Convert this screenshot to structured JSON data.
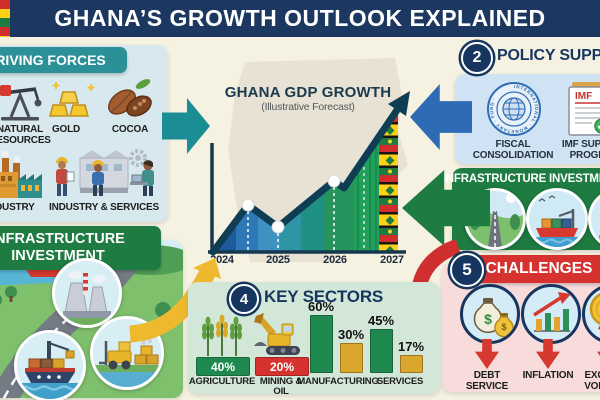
{
  "title": "GHANA’S GROWTH OUTLOOK EXPLAINED",
  "driving_forces": {
    "title": "DRIVING FORCES",
    "items": [
      {
        "label": "NATURAL RESOURCES",
        "icon": "oil-pump-icon"
      },
      {
        "label": "GOLD",
        "icon": "gold-bars-icon"
      },
      {
        "label": "COCOA",
        "icon": "cocoa-pods-icon"
      },
      {
        "label": "INDUSTRY",
        "icon": "factory-icon"
      },
      {
        "label": "INDUSTRY & SERVICES",
        "icon": "workers-icon"
      }
    ]
  },
  "gdp_chart": {
    "title": "GHANA GDP GROWTH",
    "subtitle": "(Illustrative Forecast)",
    "years": [
      "2024",
      "2025",
      "2026",
      "2027"
    ]
  },
  "policy_support": {
    "number": "2",
    "title": "POLICY SUPPORT",
    "seal_text": "INTERNATIONAL · MONETARY · FUND ·",
    "items": [
      {
        "label": "FISCAL CONSOLIDATION",
        "icon": "imf-seal-icon"
      },
      {
        "label": "IMF SUPPORT PROGRAM",
        "icon": "imf-document-icon",
        "doc_header": "IMF"
      }
    ]
  },
  "infrastructure_right": {
    "title": "INFRASTRUCTURE INVESTMENT",
    "icons": [
      "road-icon",
      "port-ship-icon",
      "power-plant-icon"
    ]
  },
  "infrastructure_left": {
    "title": "INFRASTRUCTURE INVESTMENT",
    "icons": [
      "power-plant-icon",
      "cargo-ship-icon",
      "forklift-icon"
    ]
  },
  "key_sectors": {
    "number": "4",
    "title": "KEY SECTORS",
    "items": [
      {
        "label": "AGRICULTURE",
        "icon": "wheat-icon",
        "badge": "40%",
        "badge_color": "#1f8a4f"
      },
      {
        "label": "MINING & OIL",
        "icon": "excavator-icon",
        "badge": "20%",
        "badge_color": "#d63230"
      },
      {
        "label": "MANUFACTURING",
        "bars": [
          {
            "value": "60%",
            "pct": 60,
            "color": "#1f8a4f"
          },
          {
            "value": "30%",
            "pct": 30,
            "color": "#d9a62e"
          }
        ]
      },
      {
        "label": "SERVICES",
        "bars": [
          {
            "value": "45%",
            "pct": 45,
            "color": "#1f8a4f"
          },
          {
            "value": "17%",
            "pct": 17,
            "color": "#d9a62e"
          }
        ]
      }
    ]
  },
  "challenges": {
    "number": "5",
    "title": "CHALLENGES",
    "items": [
      {
        "label": "DEBT SERVICE",
        "icon": "money-bags-icon",
        "glyph": "$"
      },
      {
        "label": "INFLATION",
        "icon": "rising-chart-icon"
      },
      {
        "label": "EXCHANGE VOLATILITY",
        "icon": "coin-icon",
        "glyph": "$"
      }
    ]
  },
  "colors": {
    "title_bar_navy": "#1c3760",
    "background_cream": "#f6f2e2",
    "teal_accent": "#2b9098",
    "blue_arrow": "#2d6cb5",
    "green_accent": "#1e7b41",
    "red_accent": "#d63230",
    "gold_accent": "#efb92f",
    "panel_light_blue": "#d7e9ee",
    "panel_policy_blue": "#cfe3f4",
    "panel_pink": "#f8dcdc",
    "panel_mint": "#d2e7d8",
    "chart_line_navy": "#0f3e54",
    "kente_red": "#d12d2d",
    "kente_gold": "#fcd116",
    "kente_green": "#1e7b41"
  },
  "chart_data": [
    {
      "type": "line",
      "title": "GHANA GDP GROWTH",
      "subtitle": "(Illustrative Forecast)",
      "x_ticks": [
        "2024",
        "2025",
        "2026",
        "2027"
      ],
      "x": [
        2024.0,
        2024.55,
        2025.05,
        2026.0,
        2026.15,
        2027.0
      ],
      "y_relative_pct": [
        0,
        45,
        24,
        68,
        62,
        100
      ],
      "markers_at_x": [
        2024.55,
        2025.05,
        2026.0
      ],
      "grid": false,
      "legend": "none",
      "annotations": [
        "thick navy trend line ending in upward arrow at 2027",
        "area fill shifts from blue through teal and green to a kente textile pattern band"
      ]
    },
    {
      "type": "bar",
      "title": "KEY SECTORS",
      "categories": [
        "AGRICULTURE",
        "MINING & OIL",
        "MANUFACTURING",
        "SERVICES"
      ],
      "series": [
        {
          "name": "primary-share",
          "values": [
            40,
            20,
            60,
            45
          ]
        },
        {
          "name": "secondary-share",
          "values": [
            null,
            null,
            30,
            17
          ]
        }
      ],
      "unit": "%",
      "ylim": [
        0,
        100
      ]
    }
  ]
}
